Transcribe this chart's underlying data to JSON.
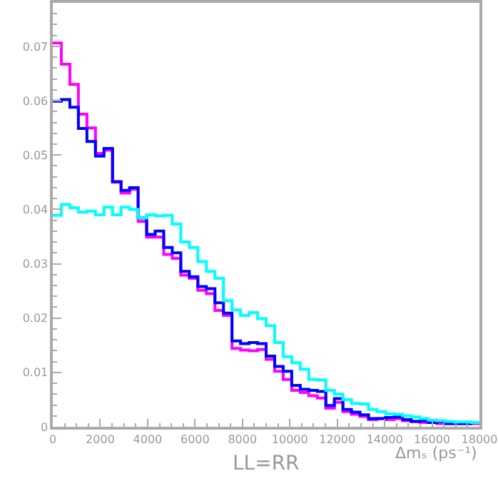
{
  "chart_data": {
    "type": "histogram",
    "bins": [
      0,
      360,
      720,
      1080,
      1440,
      1800,
      2160,
      2520,
      2880,
      3240,
      3600,
      3960,
      4320,
      4680,
      5040,
      5400,
      5760,
      6120,
      6480,
      6840,
      7200,
      7560,
      7920,
      8280,
      8640,
      9000,
      9360,
      9720,
      10080,
      10440,
      10800,
      11160,
      11520,
      11880,
      12240,
      12600,
      12960,
      13320,
      13680,
      14040,
      14400,
      14760,
      15120,
      15480,
      15840,
      16200,
      16560,
      16920,
      17280,
      17640,
      18000
    ],
    "series": [
      {
        "color": "#ff00ff",
        "values": [
          0.0706,
          0.0667,
          0.063,
          0.0575,
          0.055,
          0.0503,
          0.0509,
          0.045,
          0.043,
          0.0437,
          0.0378,
          0.0349,
          0.0349,
          0.0317,
          0.031,
          0.0279,
          0.0273,
          0.0251,
          0.0245,
          0.0214,
          0.0205,
          0.0144,
          0.0141,
          0.014,
          0.0142,
          0.0124,
          0.0102,
          0.0087,
          0.0067,
          0.0063,
          0.0057,
          0.0053,
          0.0034,
          0.0045,
          0.0028,
          0.0023,
          0.0019,
          0.0013,
          0.0015,
          0.0013,
          0.0015,
          0.0011,
          0.001,
          0.0008,
          0.0008,
          0.0006,
          0.0006,
          0.0006,
          0.0006,
          0.0006
        ]
      },
      {
        "color": "#0000ff",
        "values": [
          0.0599,
          0.0602,
          0.0588,
          0.0549,
          0.0525,
          0.0498,
          0.0512,
          0.0451,
          0.0435,
          0.044,
          0.0384,
          0.0354,
          0.036,
          0.033,
          0.032,
          0.0286,
          0.0276,
          0.0258,
          0.0254,
          0.0228,
          0.0209,
          0.0158,
          0.0153,
          0.0155,
          0.0153,
          0.013,
          0.0111,
          0.0102,
          0.0076,
          0.0069,
          0.0067,
          0.0065,
          0.0039,
          0.0052,
          0.0032,
          0.0027,
          0.0022,
          0.0015,
          0.0015,
          0.0017,
          0.0018,
          0.0013,
          0.001,
          0.0011,
          0.0008,
          0.001,
          0.0006,
          0.0006,
          0.0006,
          0.0008
        ]
      },
      {
        "color": "#00ffff",
        "values": [
          0.0389,
          0.0409,
          0.0403,
          0.0395,
          0.0397,
          0.039,
          0.0404,
          0.039,
          0.0404,
          0.04,
          0.0384,
          0.039,
          0.0388,
          0.0389,
          0.0373,
          0.034,
          0.033,
          0.0304,
          0.0286,
          0.0273,
          0.0232,
          0.0215,
          0.0205,
          0.021,
          0.0199,
          0.0186,
          0.0155,
          0.0129,
          0.0118,
          0.0106,
          0.0087,
          0.0086,
          0.0067,
          0.006,
          0.005,
          0.0043,
          0.0042,
          0.0032,
          0.0028,
          0.0024,
          0.0023,
          0.002,
          0.0018,
          0.0015,
          0.0012,
          0.0011,
          0.001,
          0.0009,
          0.0009,
          0.0008
        ]
      }
    ],
    "xlim": [
      0,
      18000
    ],
    "xticks": [
      0,
      2000,
      4000,
      6000,
      8000,
      10000,
      12000,
      14000,
      16000,
      18000
    ],
    "ylim": [
      0,
      0.078
    ],
    "yticks": [
      0,
      0.01,
      0.02,
      0.03,
      0.04,
      0.05,
      0.06,
      0.07
    ],
    "xlabel": "Δmₛ (ps⁻¹)",
    "annotations": [
      "LL=RR"
    ]
  }
}
